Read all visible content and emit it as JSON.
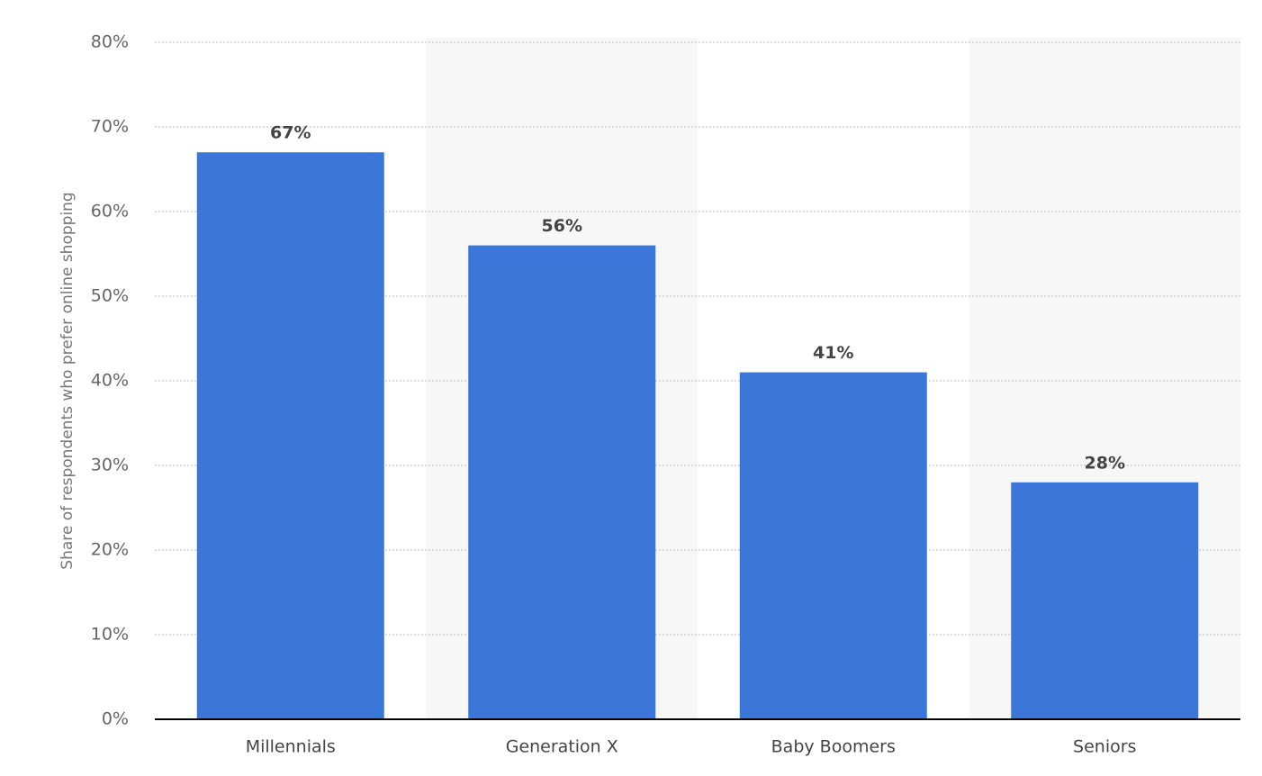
{
  "chart_data": {
    "type": "bar",
    "y_label": "Share of respondents who prefer online shopping",
    "categories": [
      "Millennials",
      "Generation X",
      "Baby Boomers",
      "Seniors"
    ],
    "values": [
      67,
      56,
      41,
      28
    ],
    "value_labels": [
      "67%",
      "56%",
      "41%",
      "28%"
    ],
    "color": "#3b76d9",
    "ylim": [
      0,
      80
    ],
    "yticks": [
      {
        "value": 0,
        "label": "0%"
      },
      {
        "value": 10,
        "label": "10%"
      },
      {
        "value": 20,
        "label": "20%"
      },
      {
        "value": 30,
        "label": "30%"
      },
      {
        "value": 40,
        "label": "40%"
      },
      {
        "value": 50,
        "label": "50%"
      },
      {
        "value": 60,
        "label": "60%"
      },
      {
        "value": 70,
        "label": "70%"
      },
      {
        "value": 80,
        "label": "80%"
      }
    ],
    "grid": true
  }
}
